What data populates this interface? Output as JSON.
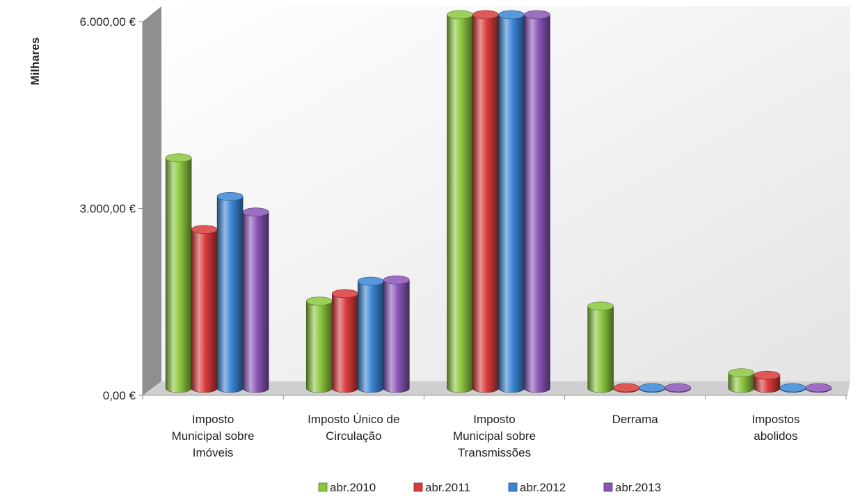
{
  "chart_data": {
    "type": "bar",
    "title": "",
    "xlabel": "",
    "ylabel": "Milhares",
    "ylim": [
      0,
      6000
    ],
    "yticks": [
      0,
      3000,
      6000
    ],
    "ytick_labels": [
      "0,00 €",
      "3.000,00 €",
      "6.000,00 €"
    ],
    "grid": false,
    "legend_position": "bottom",
    "categories": [
      [
        "Imposto",
        "Municipal sobre",
        "Imóveis"
      ],
      [
        "Imposto Único de",
        "Circulação"
      ],
      [
        "Imposto",
        "Municipal sobre",
        "Transmissões"
      ],
      [
        "Derrama"
      ],
      [
        "Impostos",
        "abolidos"
      ]
    ],
    "series": [
      {
        "name": "abr.2010",
        "color": "#8cc63f",
        "values": [
          3700,
          1400,
          6000,
          1320,
          250
        ]
      },
      {
        "name": "abr.2011",
        "color": "#d93a3a",
        "values": [
          2550,
          1520,
          6000,
          10,
          210
        ]
      },
      {
        "name": "abr.2012",
        "color": "#3b86d6",
        "values": [
          3080,
          1720,
          6000,
          10,
          10
        ]
      },
      {
        "name": "abr.2013",
        "color": "#8a55b8",
        "values": [
          2830,
          1740,
          6000,
          10,
          10
        ]
      }
    ]
  }
}
